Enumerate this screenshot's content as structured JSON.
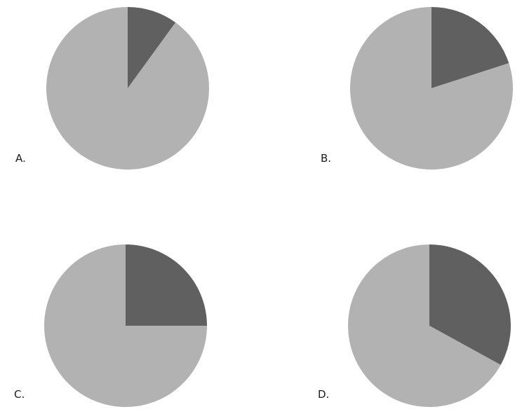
{
  "chart_data": [
    {
      "type": "pie",
      "label": "A.",
      "values": [
        10,
        90
      ],
      "colors": [
        "#606060",
        "#b2b2b2"
      ]
    },
    {
      "type": "pie",
      "label": "B.",
      "values": [
        20,
        80
      ],
      "colors": [
        "#606060",
        "#b2b2b2"
      ]
    },
    {
      "type": "pie",
      "label": "C.",
      "values": [
        25,
        75
      ],
      "colors": [
        "#606060",
        "#b2b2b2"
      ]
    },
    {
      "type": "pie",
      "label": "D.",
      "values": [
        33,
        67
      ],
      "colors": [
        "#606060",
        "#b2b2b2"
      ]
    }
  ]
}
